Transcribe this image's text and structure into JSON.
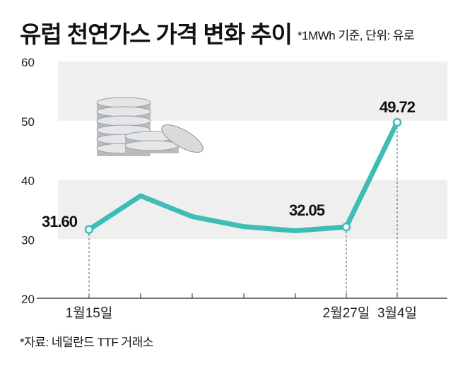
{
  "title": "유럽 천연가스 가격 변화 추이",
  "note": "*1MWh 기준, 단위: 유로",
  "source": "*자료: 네덜란드 TTF 거래소",
  "chart_data": {
    "type": "line",
    "title": "유럽 천연가스 가격 변화 추이",
    "ylim": [
      20,
      60
    ],
    "yticks": [
      "20",
      "30",
      "40",
      "50",
      "60"
    ],
    "x_labels": [
      "1월15일",
      "",
      "",
      "",
      "",
      "2월27일",
      "3월4일"
    ],
    "values": [
      31.6,
      37.3,
      33.8,
      32.1,
      31.4,
      32.05,
      49.72
    ],
    "data_labels": [
      "31.60",
      "",
      "",
      "",
      "",
      "32.05",
      "49.72"
    ],
    "highlighted_points": [
      0,
      5,
      6
    ],
    "bands": [
      [
        30,
        40
      ],
      [
        50,
        60
      ]
    ],
    "colors": {
      "line": "#3dbdb6",
      "band": "#efefef",
      "axis": "#222222"
    }
  }
}
